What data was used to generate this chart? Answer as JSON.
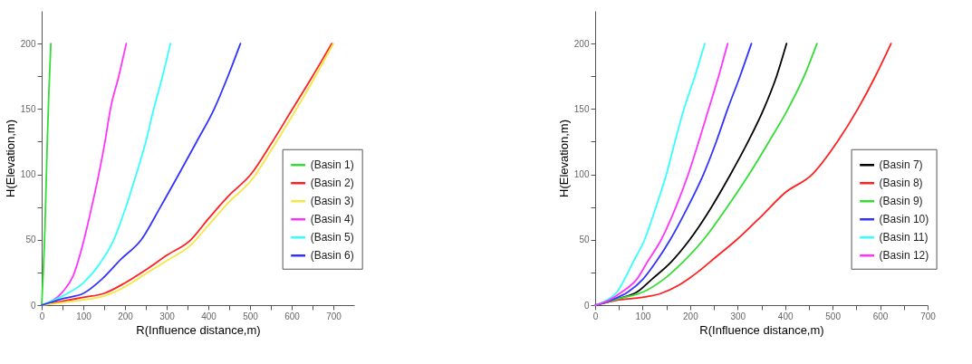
{
  "chart_data": [
    {
      "type": "line",
      "xlabel": "R(Influence distance,m)",
      "ylabel": "H(Elevation,m)",
      "xlim": [
        0,
        750
      ],
      "ylim": [
        0,
        225
      ],
      "xticks": [
        0,
        {
          "value": 50,
          "label": null
        },
        100,
        {
          "value": 150,
          "label": null
        },
        200,
        {
          "value": 250,
          "label": null
        },
        300,
        {
          "value": 350,
          "label": null
        },
        400,
        {
          "value": 450,
          "label": null
        },
        500,
        {
          "value": 550,
          "label": null
        },
        600,
        {
          "value": 650,
          "label": null
        },
        700
      ],
      "yticks": [
        0,
        {
          "value": 25,
          "label": null
        },
        50,
        {
          "value": 75,
          "label": null
        },
        100,
        {
          "value": 125,
          "label": null
        },
        150,
        {
          "value": 175,
          "label": null
        },
        200
      ],
      "legend": "right",
      "series": [
        {
          "name": "(Basin 1)",
          "color": "#33dd33",
          "x": [
            0,
            8,
            13,
            17,
            22
          ],
          "values": [
            0,
            60,
            120,
            160,
            200
          ]
        },
        {
          "name": "(Basin 2)",
          "color": "#ff2020",
          "x": [
            0,
            50,
            100,
            150,
            200,
            250,
            300,
            358,
            400,
            450,
            502,
            550,
            602,
            650,
            696
          ],
          "values": [
            0,
            3,
            6,
            9,
            17,
            27,
            38,
            50,
            66,
            84,
            100,
            123,
            150,
            175,
            200
          ]
        },
        {
          "name": "(Basin 3)",
          "color": "#f5e642",
          "x": [
            0,
            50,
            100,
            150,
            200,
            250,
            300,
            358,
            400,
            450,
            502,
            550,
            602,
            650,
            700
          ],
          "values": [
            0,
            2,
            4,
            7,
            14,
            24,
            34,
            46,
            61,
            79,
            95,
            118,
            145,
            171,
            200
          ]
        },
        {
          "name": "(Basin 4)",
          "color": "#ff33ff",
          "x": [
            0,
            50,
            75,
            100,
            120,
            137,
            152,
            165,
            185,
            203
          ],
          "values": [
            0,
            10,
            22,
            48,
            75,
            100,
            125,
            150,
            175,
            200
          ]
        },
        {
          "name": "(Basin 5)",
          "color": "#33ffff",
          "x": [
            0,
            50,
            100,
            140,
            173,
            200,
            227,
            250,
            269,
            290,
            309
          ],
          "values": [
            0,
            7,
            17,
            32,
            50,
            73,
            100,
            125,
            150,
            175,
            200
          ]
        },
        {
          "name": "(Basin 6)",
          "color": "#3333ff",
          "x": [
            0,
            50,
            100,
            145,
            190,
            239,
            285,
            329,
            372,
            414,
            447,
            477
          ],
          "values": [
            0,
            5,
            9,
            20,
            35,
            50,
            75,
            100,
            125,
            150,
            175,
            200
          ]
        }
      ]
    },
    {
      "type": "line",
      "xlabel": "R(Influence distance,m)",
      "ylabel": "H(Elevation,m)",
      "xlim": [
        0,
        700
      ],
      "ylim": [
        0,
        225
      ],
      "xticks": [
        0,
        {
          "value": 50,
          "label": null
        },
        100,
        {
          "value": 150,
          "label": null
        },
        200,
        {
          "value": 250,
          "label": null
        },
        300,
        {
          "value": 350,
          "label": null
        },
        400,
        {
          "value": 450,
          "label": null
        },
        500,
        {
          "value": 550,
          "label": null
        },
        600,
        {
          "value": 650,
          "label": null
        },
        700
      ],
      "yticks": [
        0,
        {
          "value": 25,
          "label": null
        },
        50,
        {
          "value": 75,
          "label": null
        },
        100,
        {
          "value": 125,
          "label": null
        },
        150,
        {
          "value": 175,
          "label": null
        },
        200
      ],
      "legend": "right",
      "series": [
        {
          "name": "(Basin 7)",
          "color": "#000000",
          "x": [
            0,
            50,
            88,
            120,
            160,
            199,
            245,
            285,
            322,
            355,
            382,
            403
          ],
          "values": [
            0,
            5,
            10,
            20,
            33,
            50,
            75,
            100,
            125,
            150,
            175,
            200
          ]
        },
        {
          "name": "(Basin 8)",
          "color": "#ff2020",
          "x": [
            0,
            50,
            100,
            139,
            175,
            215,
            255,
            298,
            350,
            400,
            457,
            510,
            553,
            590,
            623
          ],
          "values": [
            0,
            4,
            6,
            9,
            15,
            25,
            37,
            50,
            68,
            86,
            100,
            125,
            150,
            175,
            200
          ]
        },
        {
          "name": "(Basin 9)",
          "color": "#33dd33",
          "x": [
            0,
            50,
            101,
            145,
            185,
            228,
            278,
            324,
            366,
            406,
            440,
            467
          ],
          "values": [
            0,
            5,
            10,
            20,
            33,
            50,
            75,
            100,
            125,
            150,
            175,
            200
          ]
        },
        {
          "name": "(Basin 10)",
          "color": "#3333ff",
          "x": [
            0,
            35,
            69,
            101,
            128,
            158,
            195,
            228,
            255,
            279,
            305,
            329
          ],
          "values": [
            0,
            4,
            10,
            20,
            33,
            50,
            75,
            100,
            125,
            150,
            175,
            200
          ]
        },
        {
          "name": "(Basin 11)",
          "color": "#33ffff",
          "x": [
            0,
            25,
            46,
            62,
            80,
            104,
            128,
            150,
            168,
            187,
            210,
            231
          ],
          "values": [
            0,
            4,
            10,
            20,
            33,
            50,
            75,
            100,
            125,
            150,
            175,
            200
          ]
        },
        {
          "name": "(Basin 12)",
          "color": "#ff33ff",
          "x": [
            0,
            30,
            56,
            88,
            110,
            139,
            170,
            196,
            218,
            239,
            260,
            279
          ],
          "values": [
            0,
            4,
            10,
            20,
            33,
            50,
            75,
            100,
            125,
            150,
            175,
            200
          ]
        }
      ]
    }
  ]
}
